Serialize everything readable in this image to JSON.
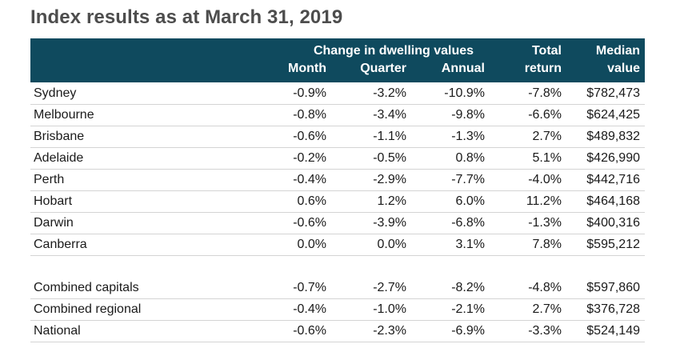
{
  "title": "Index results as at March 31, 2019",
  "header": {
    "group_label": "Change in dwelling values",
    "month": "Month",
    "quarter": "Quarter",
    "annual": "Annual",
    "total_line1": "Total",
    "total_line2": "return",
    "median_line1": "Median",
    "median_line2": "value"
  },
  "rows": [
    {
      "name": "Sydney",
      "month": "-0.9%",
      "quarter": "-3.2%",
      "annual": "-10.9%",
      "total": "-7.8%",
      "median": "$782,473"
    },
    {
      "name": "Melbourne",
      "month": "-0.8%",
      "quarter": "-3.4%",
      "annual": "-9.8%",
      "total": "-6.6%",
      "median": "$624,425"
    },
    {
      "name": "Brisbane",
      "month": "-0.6%",
      "quarter": "-1.1%",
      "annual": "-1.3%",
      "total": "2.7%",
      "median": "$489,832"
    },
    {
      "name": "Adelaide",
      "month": "-0.2%",
      "quarter": "-0.5%",
      "annual": "0.8%",
      "total": "5.1%",
      "median": "$426,990"
    },
    {
      "name": "Perth",
      "month": "-0.4%",
      "quarter": "-2.9%",
      "annual": "-7.7%",
      "total": "-4.0%",
      "median": "$442,716"
    },
    {
      "name": "Hobart",
      "month": "0.6%",
      "quarter": "1.2%",
      "annual": "6.0%",
      "total": "11.2%",
      "median": "$464,168"
    },
    {
      "name": "Darwin",
      "month": "-0.6%",
      "quarter": "-3.9%",
      "annual": "-6.8%",
      "total": "-1.3%",
      "median": "$400,316"
    },
    {
      "name": "Canberra",
      "month": "0.0%",
      "quarter": "0.0%",
      "annual": "3.1%",
      "total": "7.8%",
      "median": "$595,212"
    }
  ],
  "summary_rows": [
    {
      "name": "Combined capitals",
      "month": "-0.7%",
      "quarter": "-2.7%",
      "annual": "-8.2%",
      "total": "-4.8%",
      "median": "$597,860"
    },
    {
      "name": "Combined regional",
      "month": "-0.4%",
      "quarter": "-1.0%",
      "annual": "-2.1%",
      "total": "2.7%",
      "median": "$376,728"
    },
    {
      "name": "National",
      "month": "-0.6%",
      "quarter": "-2.3%",
      "annual": "-6.9%",
      "total": "-3.3%",
      "median": "$524,149"
    }
  ],
  "colors": {
    "header_bg": "#0f4a5e",
    "title": "#4d4d4d",
    "divider": "#d4d4d4"
  }
}
